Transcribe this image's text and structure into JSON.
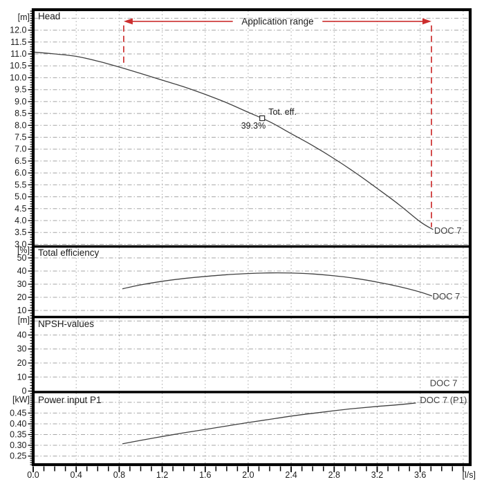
{
  "figure": {
    "background": "#ffffff",
    "border_color": "#000000",
    "grid_color": "#a5a5a5",
    "curve_color": "#3f3f3f",
    "accent_red": "#cc2e2e"
  },
  "chart_data": {
    "type": "line",
    "layout": "stacked-panels",
    "x_axis": {
      "unit_label": "[l/s]",
      "min": 0,
      "max": 4.065,
      "gridline_step": 0.4,
      "minor_tick_step": 0.1,
      "tick_labels": [
        {
          "value": 0,
          "label": "0.0"
        },
        {
          "value": 0.4,
          "label": "0.4"
        },
        {
          "value": 0.8,
          "label": "0.8"
        },
        {
          "value": 1.2,
          "label": "1.2"
        },
        {
          "value": 1.6,
          "label": "1.6"
        },
        {
          "value": 2,
          "label": "2.0"
        },
        {
          "value": 2.4,
          "label": "2.4"
        },
        {
          "value": 2.8,
          "label": "2.8"
        },
        {
          "value": 3.2,
          "label": "3.2"
        },
        {
          "value": 3.6,
          "label": "3.6"
        }
      ]
    },
    "panels": [
      {
        "id": "head",
        "title": "Head",
        "unit_label": "[m]",
        "ylim": [
          2.91,
          12.86
        ],
        "minor_tick_step": 0.1,
        "gridline_values": [
          3,
          3.5,
          4,
          4.5,
          5,
          5.5,
          6,
          6.5,
          7,
          7.5,
          8,
          8.5,
          9,
          9.5,
          10,
          10.5,
          11,
          11.5,
          12,
          12.5
        ],
        "ytick_labels": [
          {
            "value": 3,
            "label": "3.0"
          },
          {
            "value": 3.5,
            "label": "3.5"
          },
          {
            "value": 4,
            "label": "4.0"
          },
          {
            "value": 4.5,
            "label": "4.5"
          },
          {
            "value": 5,
            "label": "5.0"
          },
          {
            "value": 5.5,
            "label": "5.5"
          },
          {
            "value": 6,
            "label": "6.0"
          },
          {
            "value": 6.5,
            "label": "6.5"
          },
          {
            "value": 7,
            "label": "7.0"
          },
          {
            "value": 7.5,
            "label": "7.5"
          },
          {
            "value": 8,
            "label": "8.0"
          },
          {
            "value": 8.5,
            "label": "8.5"
          },
          {
            "value": 9,
            "label": "9.0"
          },
          {
            "value": 9.5,
            "label": "9.5"
          },
          {
            "value": 10,
            "label": "10.0"
          },
          {
            "value": 10.5,
            "label": "10.5"
          },
          {
            "value": 11,
            "label": "11.0"
          },
          {
            "value": 11.5,
            "label": "11.5"
          },
          {
            "value": 12,
            "label": "12.0"
          }
        ],
        "series": [
          {
            "name": "DOC 7",
            "color": "#3f3f3f",
            "points": [
              [
                0,
                11.08
              ],
              [
                0.2,
                11.0
              ],
              [
                0.4,
                10.9
              ],
              [
                0.6,
                10.7
              ],
              [
                0.8,
                10.45
              ],
              [
                1.0,
                10.18
              ],
              [
                1.2,
                9.9
              ],
              [
                1.4,
                9.62
              ],
              [
                1.6,
                9.3
              ],
              [
                1.8,
                8.95
              ],
              [
                2.0,
                8.55
              ],
              [
                2.2,
                8.15
              ],
              [
                2.4,
                7.65
              ],
              [
                2.6,
                7.15
              ],
              [
                2.8,
                6.6
              ],
              [
                3.0,
                6.0
              ],
              [
                3.2,
                5.35
              ],
              [
                3.4,
                4.68
              ],
              [
                3.6,
                3.95
              ],
              [
                3.72,
                3.62
              ]
            ],
            "label": {
              "text": "DOC 7",
              "x": 3.73,
              "y": 3.45
            }
          }
        ],
        "annotations": {
          "application_range": {
            "label": "Application range",
            "color": "#cc2e2e",
            "x_from": 0.842,
            "x_to": 3.705,
            "y": 12.37,
            "guide_lines": [
              {
                "x": 0.842,
                "y_from": 12.2,
                "y_to": 10.5
              },
              {
                "x": 3.705,
                "y_from": 12.2,
                "y_to": 3.72
              }
            ]
          },
          "efficiency_point": {
            "x": 2.13,
            "y": 8.3,
            "value_label": "39.3%",
            "name_label": "Tot. eff."
          }
        }
      },
      {
        "id": "efficiency",
        "title": "Total efficiency",
        "unit_label": "[%]",
        "ylim": [
          5.0,
          58.7
        ],
        "minor_tick_step": 2,
        "gridline_values": [
          10,
          20,
          30,
          40,
          50
        ],
        "ytick_labels": [
          {
            "value": 10,
            "label": "10"
          },
          {
            "value": 20,
            "label": "20"
          },
          {
            "value": 30,
            "label": "30"
          },
          {
            "value": 40,
            "label": "40"
          },
          {
            "value": 50,
            "label": "50"
          }
        ],
        "series": [
          {
            "name": "DOC 7",
            "color": "#3f3f3f",
            "points": [
              [
                0.83,
                26.5
              ],
              [
                1.0,
                29.5
              ],
              [
                1.2,
                32.2
              ],
              [
                1.4,
                34.3
              ],
              [
                1.6,
                35.9
              ],
              [
                1.8,
                37.2
              ],
              [
                2.0,
                38.1
              ],
              [
                2.2,
                38.6
              ],
              [
                2.4,
                38.5
              ],
              [
                2.6,
                37.8
              ],
              [
                2.8,
                36.4
              ],
              [
                3.0,
                34.4
              ],
              [
                3.2,
                31.6
              ],
              [
                3.4,
                28.2
              ],
              [
                3.6,
                24.0
              ],
              [
                3.71,
                21.0
              ]
            ],
            "label": {
              "text": "DOC 7",
              "x": 3.715,
              "y": 18.4
            }
          }
        ],
        "annotations": {}
      },
      {
        "id": "npsh",
        "title": "NPSH-values",
        "unit_label": "[m]",
        "ylim": [
          -0.7,
          52.8
        ],
        "minor_tick_step": 2,
        "gridline_values": [
          10,
          20,
          30,
          40,
          50
        ],
        "ytick_labels": [
          {
            "value": 0,
            "label": "0"
          },
          {
            "value": 10,
            "label": "10"
          },
          {
            "value": 20,
            "label": "20"
          },
          {
            "value": 30,
            "label": "30"
          },
          {
            "value": 40,
            "label": "40"
          }
        ],
        "series": [
          {
            "name": "DOC 7",
            "color": "#3f3f3f",
            "points": [],
            "label": {
              "text": "DOC 7",
              "x": 3.69,
              "y": 3.6
            }
          }
        ],
        "annotations": {}
      },
      {
        "id": "power",
        "title": "Power input P1",
        "unit_label": "[kW]",
        "ylim": [
          0.21,
          0.548
        ],
        "minor_tick_step": 0.01,
        "gridline_values": [
          0.25,
          0.3,
          0.35,
          0.4,
          0.45,
          0.5
        ],
        "ytick_labels": [
          {
            "value": 0.25,
            "label": "0.25"
          },
          {
            "value": 0.3,
            "label": "0.30"
          },
          {
            "value": 0.35,
            "label": "0.35"
          },
          {
            "value": 0.4,
            "label": "0.40"
          },
          {
            "value": 0.45,
            "label": "0.45"
          }
        ],
        "series": [
          {
            "name": "DOC 7 (P1)",
            "color": "#3f3f3f",
            "points": [
              [
                0.83,
                0.307
              ],
              [
                1.0,
                0.323
              ],
              [
                1.2,
                0.341
              ],
              [
                1.4,
                0.358
              ],
              [
                1.6,
                0.374
              ],
              [
                1.8,
                0.39
              ],
              [
                2.0,
                0.406
              ],
              [
                2.2,
                0.421
              ],
              [
                2.4,
                0.436
              ],
              [
                2.6,
                0.449
              ],
              [
                2.8,
                0.461
              ],
              [
                3.0,
                0.472
              ],
              [
                3.2,
                0.481
              ],
              [
                3.4,
                0.489
              ],
              [
                3.56,
                0.497
              ]
            ],
            "label": {
              "text": "DOC 7 (P1)",
              "x": 3.598,
              "y": 0.496
            }
          }
        ],
        "annotations": {}
      }
    ]
  }
}
